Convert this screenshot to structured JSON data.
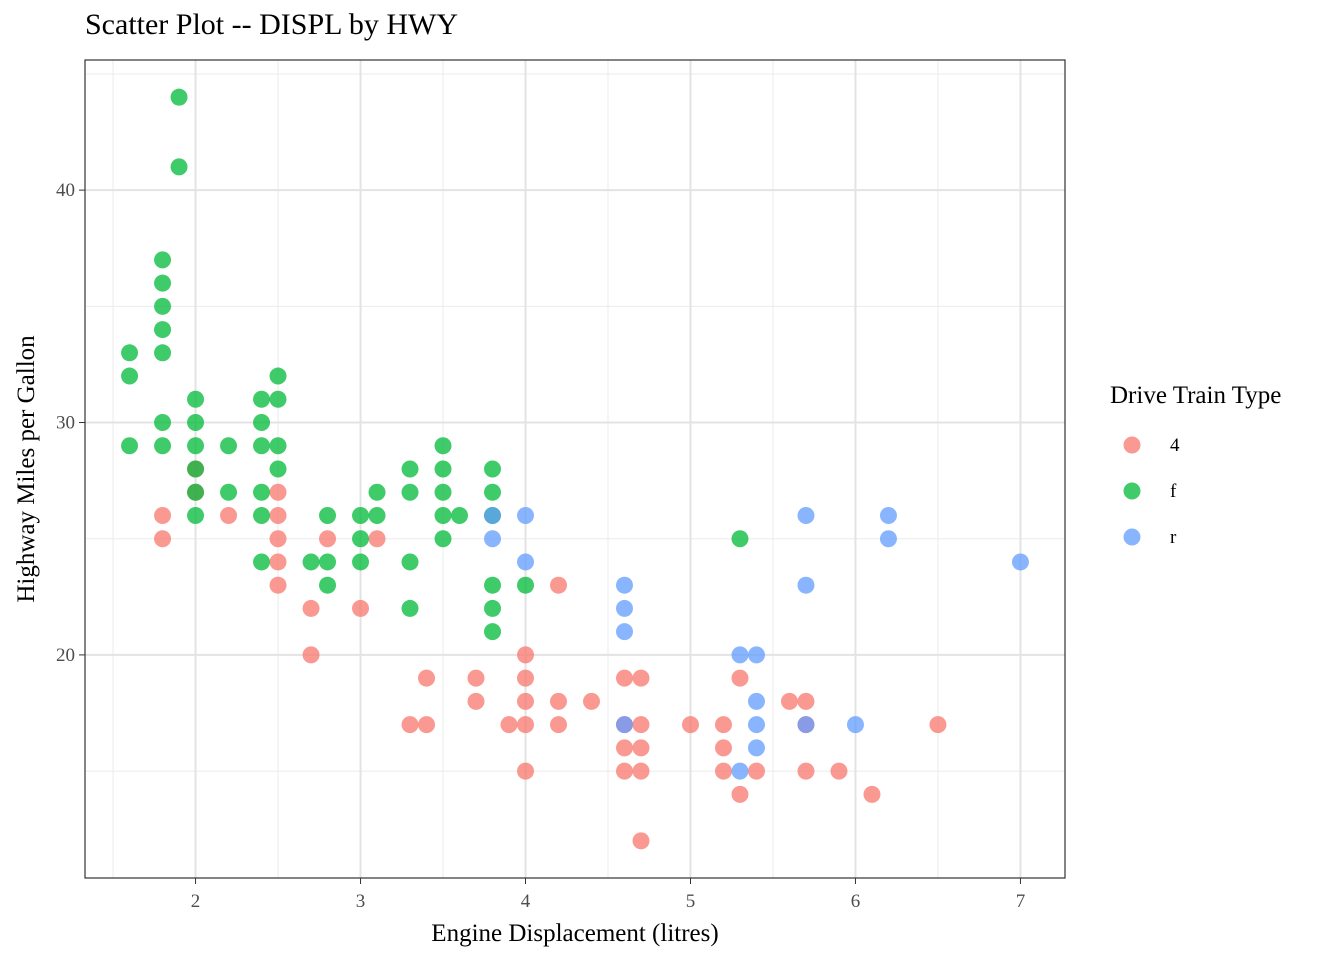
{
  "chart_data": {
    "type": "scatter",
    "title": "Scatter Plot -- DISPL by HWY",
    "xlabel": "Engine Displacement (litres)",
    "ylabel": "Highway Miles per Gallon",
    "xlim": [
      1.33,
      7.27
    ],
    "ylim": [
      10.4,
      45.6
    ],
    "x_ticks": [
      2,
      3,
      4,
      5,
      6,
      7
    ],
    "y_ticks": [
      20,
      30,
      40
    ],
    "grid": true,
    "legend": {
      "title": "Drive Train Type",
      "placement": "right",
      "entries": [
        "4",
        "f",
        "r"
      ]
    },
    "colors": {
      "4": "#F8766D",
      "f": "#00BA38",
      "r": "#619CFF"
    },
    "series": [
      {
        "name": "4",
        "points": [
          [
            1.8,
            26
          ],
          [
            1.8,
            25
          ],
          [
            2.0,
            28
          ],
          [
            2.0,
            27
          ],
          [
            2.2,
            26
          ],
          [
            2.5,
            27
          ],
          [
            2.5,
            26
          ],
          [
            2.5,
            25
          ],
          [
            2.5,
            24
          ],
          [
            2.5,
            23
          ],
          [
            2.7,
            22
          ],
          [
            2.7,
            20
          ],
          [
            2.8,
            25
          ],
          [
            3.0,
            22
          ],
          [
            3.1,
            25
          ],
          [
            3.3,
            17
          ],
          [
            3.4,
            19
          ],
          [
            3.4,
            17
          ],
          [
            3.7,
            19
          ],
          [
            3.7,
            18
          ],
          [
            3.9,
            17
          ],
          [
            4.0,
            20
          ],
          [
            4.0,
            19
          ],
          [
            4.0,
            18
          ],
          [
            4.0,
            17
          ],
          [
            4.0,
            15
          ],
          [
            4.2,
            23
          ],
          [
            4.2,
            18
          ],
          [
            4.2,
            17
          ],
          [
            4.4,
            18
          ],
          [
            4.6,
            19
          ],
          [
            4.6,
            17
          ],
          [
            4.6,
            16
          ],
          [
            4.6,
            15
          ],
          [
            4.7,
            19
          ],
          [
            4.7,
            17
          ],
          [
            4.7,
            16
          ],
          [
            4.7,
            15
          ],
          [
            4.7,
            12
          ],
          [
            5.0,
            17
          ],
          [
            5.2,
            17
          ],
          [
            5.2,
            16
          ],
          [
            5.2,
            15
          ],
          [
            5.3,
            19
          ],
          [
            5.3,
            14
          ],
          [
            5.4,
            15
          ],
          [
            5.6,
            18
          ],
          [
            5.7,
            18
          ],
          [
            5.7,
            17
          ],
          [
            5.7,
            15
          ],
          [
            5.9,
            15
          ],
          [
            6.1,
            14
          ],
          [
            6.5,
            17
          ]
        ]
      },
      {
        "name": "f",
        "points": [
          [
            1.6,
            33
          ],
          [
            1.6,
            32
          ],
          [
            1.6,
            29
          ],
          [
            1.8,
            37
          ],
          [
            1.8,
            36
          ],
          [
            1.8,
            35
          ],
          [
            1.8,
            34
          ],
          [
            1.8,
            33
          ],
          [
            1.8,
            30
          ],
          [
            1.8,
            29
          ],
          [
            1.9,
            44
          ],
          [
            1.9,
            41
          ],
          [
            2.0,
            31
          ],
          [
            2.0,
            30
          ],
          [
            2.0,
            29
          ],
          [
            2.0,
            28
          ],
          [
            2.0,
            27
          ],
          [
            2.0,
            26
          ],
          [
            2.2,
            29
          ],
          [
            2.2,
            27
          ],
          [
            2.4,
            31
          ],
          [
            2.4,
            30
          ],
          [
            2.4,
            29
          ],
          [
            2.4,
            27
          ],
          [
            2.4,
            26
          ],
          [
            2.4,
            24
          ],
          [
            2.5,
            32
          ],
          [
            2.5,
            31
          ],
          [
            2.5,
            29
          ],
          [
            2.5,
            28
          ],
          [
            2.7,
            24
          ],
          [
            2.8,
            26
          ],
          [
            2.8,
            24
          ],
          [
            2.8,
            23
          ],
          [
            3.0,
            26
          ],
          [
            3.0,
            25
          ],
          [
            3.0,
            24
          ],
          [
            3.1,
            27
          ],
          [
            3.1,
            26
          ],
          [
            3.3,
            28
          ],
          [
            3.3,
            27
          ],
          [
            3.3,
            24
          ],
          [
            3.3,
            22
          ],
          [
            3.5,
            29
          ],
          [
            3.5,
            28
          ],
          [
            3.5,
            27
          ],
          [
            3.5,
            26
          ],
          [
            3.5,
            25
          ],
          [
            3.6,
            26
          ],
          [
            3.8,
            28
          ],
          [
            3.8,
            27
          ],
          [
            3.8,
            26
          ],
          [
            3.8,
            23
          ],
          [
            3.8,
            22
          ],
          [
            3.8,
            21
          ],
          [
            4.0,
            23
          ],
          [
            5.3,
            25
          ]
        ]
      },
      {
        "name": "r",
        "points": [
          [
            3.8,
            26
          ],
          [
            3.8,
            25
          ],
          [
            4.0,
            26
          ],
          [
            4.0,
            24
          ],
          [
            4.6,
            23
          ],
          [
            4.6,
            22
          ],
          [
            4.6,
            21
          ],
          [
            4.6,
            17
          ],
          [
            5.3,
            20
          ],
          [
            5.3,
            15
          ],
          [
            5.4,
            20
          ],
          [
            5.4,
            18
          ],
          [
            5.4,
            17
          ],
          [
            5.4,
            16
          ],
          [
            5.7,
            26
          ],
          [
            5.7,
            23
          ],
          [
            5.7,
            17
          ],
          [
            6.0,
            17
          ],
          [
            6.2,
            26
          ],
          [
            6.2,
            25
          ],
          [
            7.0,
            24
          ]
        ]
      }
    ]
  }
}
